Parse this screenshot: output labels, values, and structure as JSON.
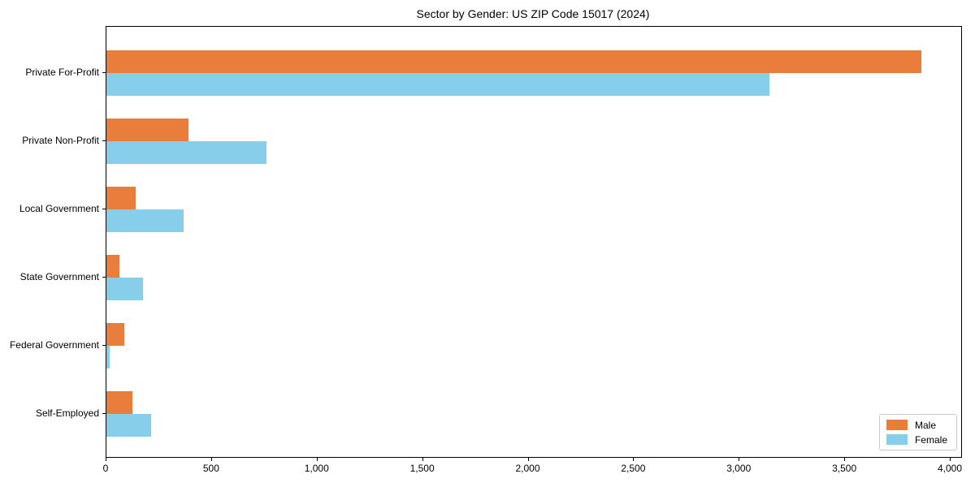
{
  "title": "Sector by Gender: US ZIP Code 15017 (2024)",
  "colors": {
    "male": "#e87d3c",
    "female": "#87ceeb",
    "axis": "#000000",
    "legend_border": "#c9c9c9",
    "background": "#ffffff"
  },
  "chart_data": {
    "type": "bar",
    "orientation": "horizontal",
    "title": "Sector by Gender: US ZIP Code 15017 (2024)",
    "categories": [
      "Private For-Profit",
      "Private Non-Profit",
      "Local Government",
      "State Government",
      "Federal Government",
      "Self-Employed"
    ],
    "series": [
      {
        "name": "Male",
        "color": "#e87d3c",
        "values": [
          3860,
          390,
          140,
          60,
          85,
          125
        ]
      },
      {
        "name": "Female",
        "color": "#87ceeb",
        "values": [
          3140,
          760,
          365,
          175,
          15,
          210
        ]
      }
    ],
    "xlabel": "",
    "ylabel": "",
    "xlim": [
      0,
      4050
    ],
    "xticks": [
      0,
      500,
      1000,
      1500,
      2000,
      2500,
      3000,
      3500,
      4000
    ],
    "xtick_labels": [
      "0",
      "500",
      "1,000",
      "1,500",
      "2,000",
      "2,500",
      "3,000",
      "3,500",
      "4,000"
    ],
    "grid": false,
    "legend_position": "lower right"
  }
}
